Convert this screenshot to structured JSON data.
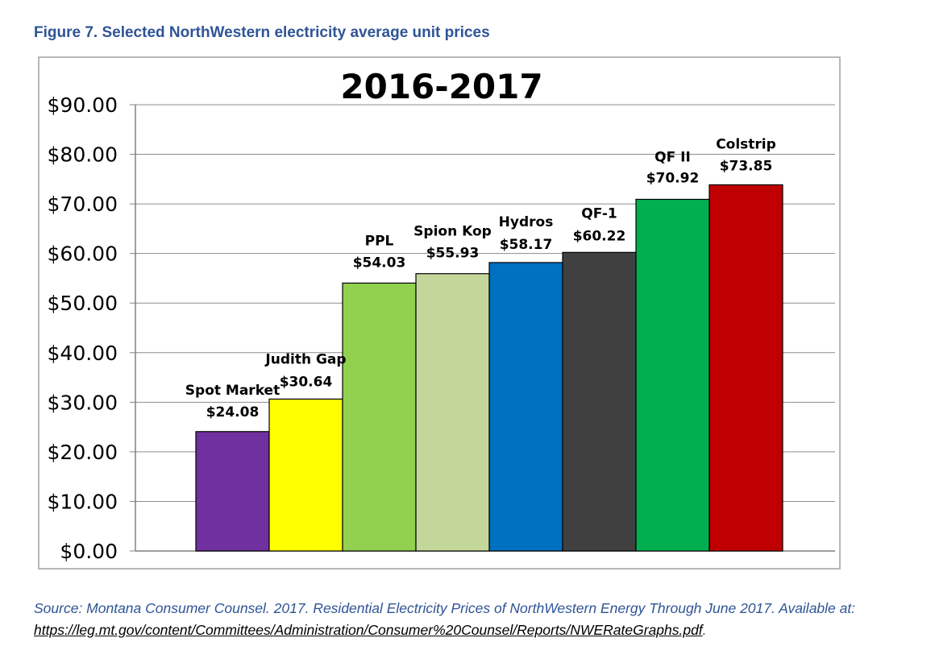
{
  "caption": "Figure 7. Selected NorthWestern electricity average unit prices",
  "source": {
    "text": "Source: Montana Consumer Counsel. 2017. Residential Electricity Prices of NorthWestern Energy Through June 2017. Available at: ",
    "link": "https://leg.mt.gov/content/Committees/Administration/Consumer%20Counsel/Reports/NWERateGraphs.pdf",
    "end": "."
  },
  "chart_data": {
    "type": "bar",
    "title": "2016-2017",
    "xlabel": "",
    "ylabel": "",
    "ylim": [
      0,
      90
    ],
    "grid": true,
    "legend": "none",
    "yticks": [
      {
        "value": 0,
        "label": "$0.00"
      },
      {
        "value": 10,
        "label": "$10.00"
      },
      {
        "value": 20,
        "label": "$20.00"
      },
      {
        "value": 30,
        "label": "$30.00"
      },
      {
        "value": 40,
        "label": "$40.00"
      },
      {
        "value": 50,
        "label": "$50.00"
      },
      {
        "value": 60,
        "label": "$60.00"
      },
      {
        "value": 70,
        "label": "$70.00"
      },
      {
        "value": 80,
        "label": "$80.00"
      },
      {
        "value": 90,
        "label": "$90.00"
      }
    ],
    "categories": [
      "Spot Market",
      "Judith Gap",
      "PPL",
      "Spion Kop",
      "Hydros",
      "QF-1",
      "QF II",
      "Colstrip"
    ],
    "values": [
      24.08,
      30.64,
      54.03,
      55.93,
      58.17,
      60.22,
      70.92,
      73.85
    ],
    "value_labels": [
      "$24.08",
      "$30.64",
      "$54.03",
      "$55.93",
      "$58.17",
      "$60.22",
      "$70.92",
      "$73.85"
    ],
    "colors": [
      "#7030a0",
      "#ffff00",
      "#92d050",
      "#c4d79b",
      "#0070c0",
      "#404040",
      "#00b050",
      "#c00000"
    ]
  }
}
